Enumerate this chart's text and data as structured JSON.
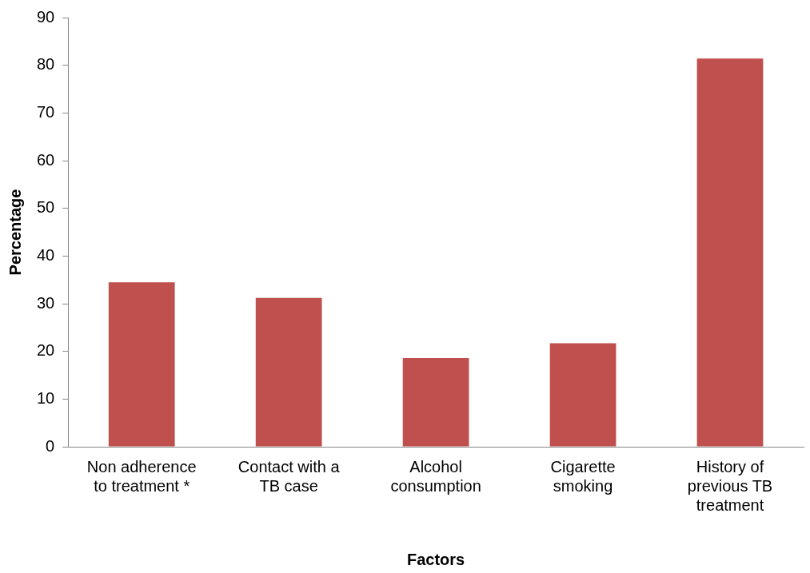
{
  "chart_data": {
    "type": "bar",
    "xlabel": "Factors",
    "ylabel": "Percentage",
    "categories": [
      "Non adherence to treatment *",
      "Contact with a TB case",
      "Alcohol consumption",
      "Cigarette smoking",
      "History of previous TB treatment"
    ],
    "values": [
      34.5,
      31.2,
      18.6,
      21.7,
      81.4
    ],
    "color": "#c0504d",
    "ylim": [
      0,
      90
    ],
    "yticks": [
      0,
      10,
      20,
      30,
      40,
      50,
      60,
      70,
      80,
      90
    ],
    "grid": false,
    "legend": false
  }
}
